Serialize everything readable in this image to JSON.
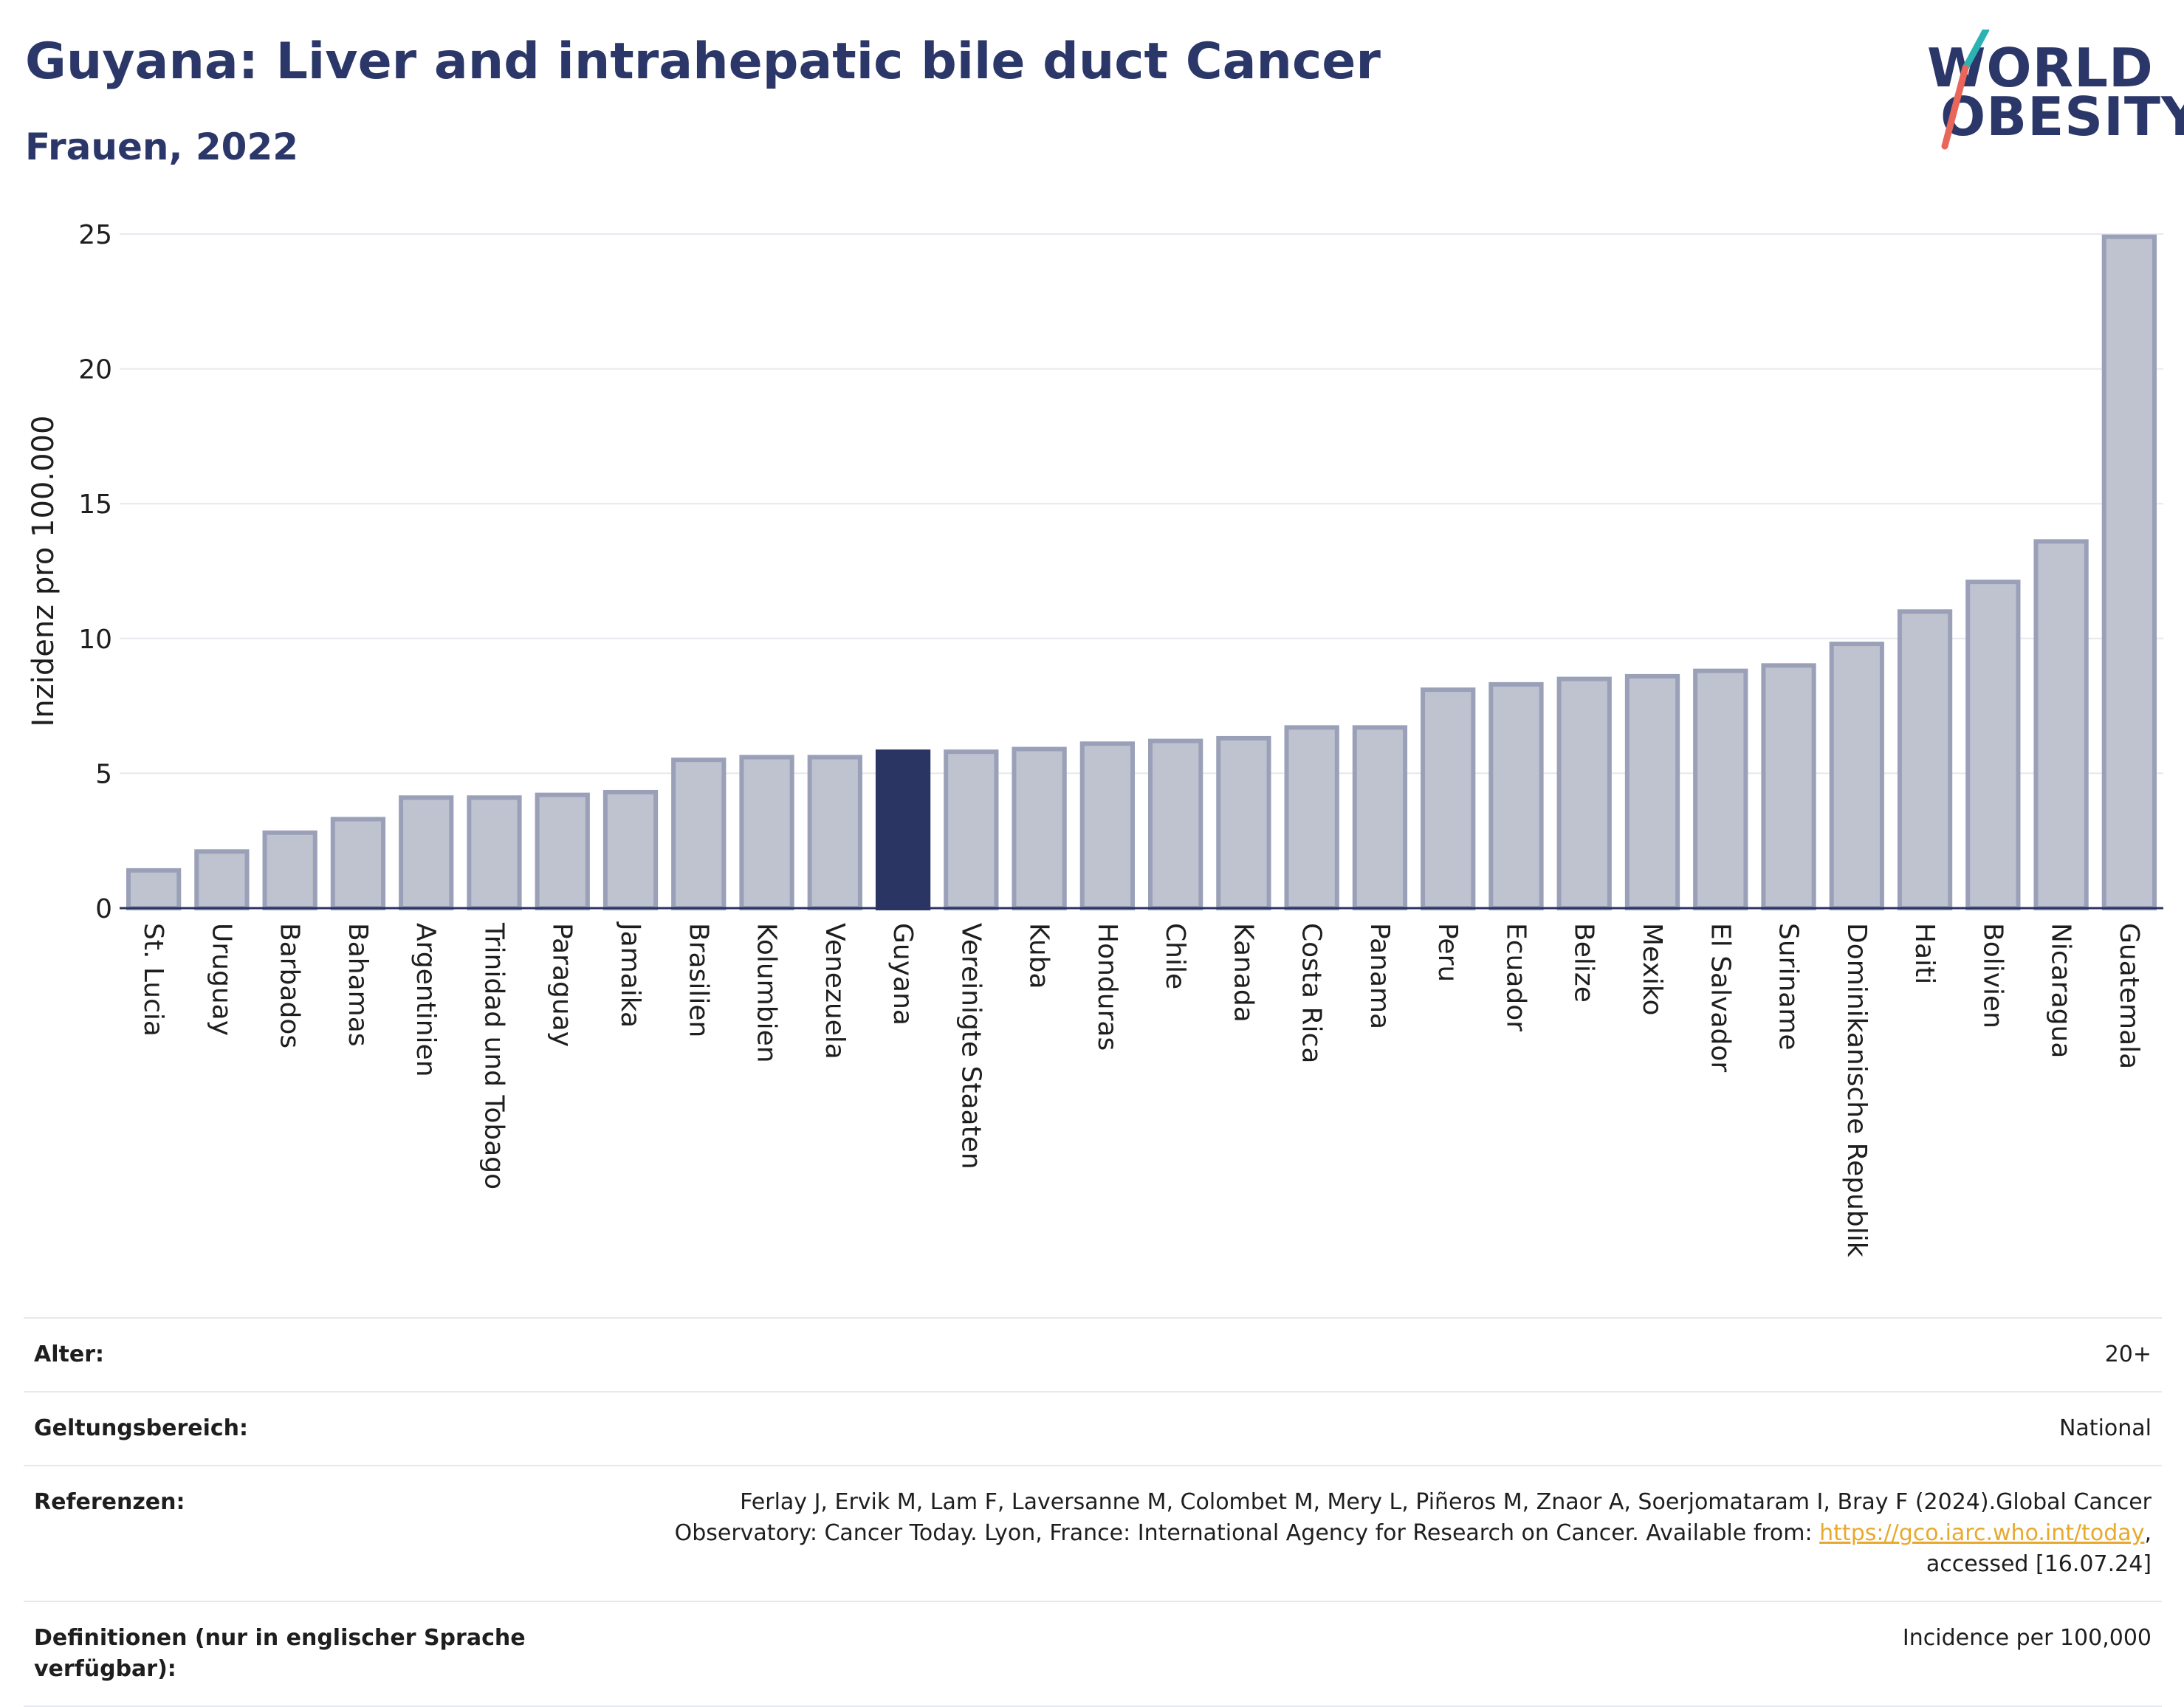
{
  "header": {
    "title": "Guyana: Liver and intrahepatic bile duct Cancer",
    "subtitle": "Frauen, 2022"
  },
  "logo": {
    "line1": "WORLD",
    "line2": "OBESITY",
    "slash_colors": [
      "#2ab3b0",
      "#e8665a"
    ]
  },
  "colors": {
    "bar": "#bfc3d0",
    "bar_border": "#9aa0b8",
    "highlight": "#2b3563",
    "text": "#1e2a4e",
    "grid": "#e6e8ee"
  },
  "chart_data": {
    "type": "bar",
    "ylabel": "Inzidenz pro 100.000",
    "xlabel": "",
    "ylim": [
      0,
      25
    ],
    "yticks": [
      0,
      5,
      10,
      15,
      20,
      25
    ],
    "highlight": "Guyana",
    "categories": [
      "St. Lucia",
      "Uruguay",
      "Barbados",
      "Bahamas",
      "Argentinien",
      "Trinidad und Tobago",
      "Paraguay",
      "Jamaika",
      "Brasilien",
      "Kolumbien",
      "Venezuela",
      "Guyana",
      "Vereinigte Staaten",
      "Kuba",
      "Honduras",
      "Chile",
      "Kanada",
      "Costa Rica",
      "Panama",
      "Peru",
      "Ecuador",
      "Belize",
      "Mexiko",
      "El Salvador",
      "Suriname",
      "Dominikanische Republik",
      "Haiti",
      "Bolivien",
      "Nicaragua",
      "Guatemala"
    ],
    "values": [
      1.4,
      2.1,
      2.8,
      3.3,
      4.1,
      4.1,
      4.2,
      4.3,
      5.5,
      5.6,
      5.6,
      5.8,
      5.8,
      5.9,
      6.1,
      6.2,
      6.3,
      6.7,
      6.7,
      8.1,
      8.3,
      8.5,
      8.6,
      8.8,
      9.0,
      9.8,
      11.0,
      12.1,
      13.6,
      24.9
    ],
    "grid": true
  },
  "info": [
    {
      "label": "Alter:",
      "value": "20+"
    },
    {
      "label": "Geltungsbereich:",
      "value": "National"
    },
    {
      "label": "Referenzen:",
      "value_pre": "Ferlay J, Ervik M, Lam F, Laversanne M, Colombet M, Mery L, Piñeros M, Znaor A, Soerjomataram I, Bray F (2024).Global Cancer Observatory: Cancer Today. Lyon, France: International Agency for Research on Cancer. Available from: ",
      "link": "https://gco.iarc.who.int/today",
      "value_post": ", accessed [16.07.24]"
    },
    {
      "label": "Definitionen (nur in englischer Sprache verfügbar):",
      "value": "Incidence per 100,000"
    }
  ]
}
